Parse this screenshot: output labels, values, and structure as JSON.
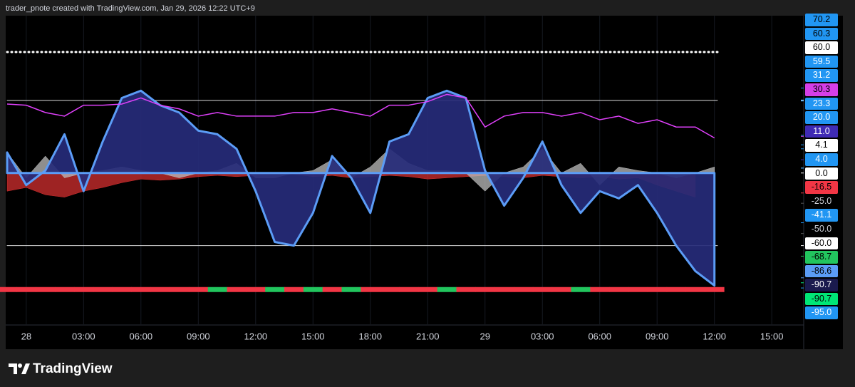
{
  "header": {
    "text": "trader_pnote created with TradingView.com, Jan 29, 2026 12:22 UTC+9"
  },
  "footer": {
    "brand": "TradingView"
  },
  "chart_data": {
    "type": "line",
    "categories": [
      null,
      "28",
      null,
      null,
      "03:00",
      null,
      null,
      "06:00",
      null,
      null,
      "09:00",
      null,
      null,
      "12:00",
      null,
      null,
      "15:00",
      null,
      null,
      "18:00",
      null,
      null,
      "21:00",
      null,
      null,
      "29",
      null,
      null,
      "03:00",
      null,
      null,
      "06:00",
      null,
      null,
      "09:00",
      null,
      null,
      "12:00",
      null,
      null,
      "15:00"
    ],
    "ylim": [
      -125,
      130
    ],
    "grid": true,
    "series": [
      {
        "kind": "area",
        "color": "#d32f2f",
        "values": [
          -15,
          -12,
          -18,
          -20,
          -15,
          -12,
          -8,
          -5,
          -6,
          -5,
          -3,
          -2,
          -3,
          -2,
          -1,
          -1,
          -3,
          -2,
          -4,
          -3,
          -2,
          -3,
          -5,
          -4,
          -3,
          -2,
          -3,
          -4,
          -2,
          -3,
          -4,
          -3,
          -5,
          -4,
          -10,
          -15,
          -20,
          null,
          null,
          null,
          null
        ]
      },
      {
        "kind": "area",
        "color": "#bdbdbd",
        "values": [
          17,
          -4,
          14,
          -4,
          0,
          2,
          5,
          2,
          0,
          -4,
          0,
          2,
          8,
          -4,
          -4,
          0,
          2,
          11,
          -4,
          5,
          20,
          8,
          2,
          2,
          0,
          -15,
          0,
          5,
          20,
          0,
          8,
          -10,
          5,
          2,
          0,
          -4,
          0,
          5,
          null,
          null,
          null
        ]
      },
      {
        "kind": "area",
        "color": "#5b9cf6",
        "values": [
          17,
          -10,
          2,
          32,
          -15,
          26,
          62,
          68,
          56,
          50,
          35,
          32,
          20,
          -15,
          -57,
          -60,
          -33,
          14,
          -4,
          -33,
          26,
          32,
          62,
          68,
          62,
          2,
          -27,
          -4,
          26,
          -10,
          -33,
          -15,
          -21,
          -10,
          -33,
          -60,
          -81,
          -93,
          null,
          null,
          null
        ]
      },
      {
        "kind": "line",
        "color": "#e040fb",
        "values": [
          57,
          56,
          50,
          47,
          56,
          56,
          57,
          62,
          56,
          53,
          47,
          50,
          47,
          47,
          47,
          50,
          50,
          53,
          50,
          47,
          56,
          56,
          59,
          65,
          62,
          38,
          47,
          50,
          50,
          47,
          50,
          44,
          47,
          41,
          44,
          38,
          38,
          29,
          null,
          null,
          null
        ]
      }
    ],
    "hlines": [
      {
        "value": 100,
        "style": "dotted"
      },
      {
        "value": 60,
        "style": "solid"
      },
      {
        "value": -60,
        "style": "solid"
      }
    ],
    "strip": {
      "value": -96,
      "colors": [
        "#f23645",
        "#f23645",
        "#f23645",
        "#f23645",
        "#f23645",
        "#f23645",
        "#f23645",
        "#f23645",
        "#f23645",
        "#f23645",
        "#f23645",
        "#22c55e",
        "#f23645",
        "#f23645",
        "#22c55e",
        "#f23645",
        "#22c55e",
        "#f23645",
        "#22c55e",
        "#f23645",
        "#f23645",
        "#f23645",
        "#f23645",
        "#22c55e",
        "#f23645",
        "#f23645",
        "#f23645",
        "#f23645",
        "#f23645",
        "#f23645",
        "#22c55e",
        "#f23645",
        "#f23645",
        "#f23645",
        "#f23645",
        "#f23645",
        "#f23645",
        "#f23645",
        null,
        null,
        null
      ]
    },
    "price_labels": [
      {
        "value": 70.2,
        "label": "70.2",
        "bg": "#2196f3",
        "fg": "#000000"
      },
      {
        "value": 60.3,
        "label": "60.3",
        "bg": "#2196f3",
        "fg": "#000000"
      },
      {
        "value": 60,
        "label": "60.0",
        "bg": "#ffffff",
        "fg": "#000000"
      },
      {
        "value": 59.5,
        "label": "59.5",
        "bg": "#2196f3",
        "fg": "#ffffff"
      },
      {
        "value": 31.2,
        "label": "31.2",
        "bg": "#2196f3",
        "fg": "#ffffff"
      },
      {
        "value": 30.3,
        "label": "30.3",
        "bg": "#d63ee8",
        "fg": "#000000"
      },
      {
        "value": 23.3,
        "label": "23.3",
        "bg": "#2196f3",
        "fg": "#ffffff"
      },
      {
        "value": 20,
        "label": "20.0",
        "bg": "#2196f3",
        "fg": "#ffffff"
      },
      {
        "value": 11,
        "label": "11.0",
        "bg": "#3f2bb5",
        "fg": "#ffffff"
      },
      {
        "value": 4.1,
        "label": "4.1",
        "bg": "#ffffff",
        "fg": "#000000"
      },
      {
        "value": 4,
        "label": "4.0",
        "bg": "#2196f3",
        "fg": "#ffffff"
      },
      {
        "value": 0,
        "label": "0.0",
        "bg": "#ffffff",
        "fg": "#000000"
      },
      {
        "value": -16.5,
        "label": "-16.5",
        "bg": "#f23645",
        "fg": "#000000"
      },
      {
        "value": -25,
        "label": "-25.0",
        "bg": "#000000",
        "fg": "#d1d4dc"
      },
      {
        "value": -41.1,
        "label": "-41.1",
        "bg": "#2196f3",
        "fg": "#ffffff"
      },
      {
        "value": -50,
        "label": "-50.0",
        "bg": "#000000",
        "fg": "#d1d4dc"
      },
      {
        "value": -60,
        "label": "-60.0",
        "bg": "#ffffff",
        "fg": "#000000"
      },
      {
        "value": -68.7,
        "label": "-68.7",
        "bg": "#22c55e",
        "fg": "#000000"
      },
      {
        "value": -86.6,
        "label": "-86.6",
        "bg": "#5b9cf6",
        "fg": "#000000"
      },
      {
        "value": -90.7,
        "label": "-90.7",
        "bg": "#1a1a4e",
        "fg": "#ffffff"
      },
      {
        "value": -90.7,
        "label": "-90.7",
        "bg": "#00e676",
        "fg": "#000000"
      },
      {
        "value": -95,
        "label": "-95.0",
        "bg": "#2196f3",
        "fg": "#ffffff"
      }
    ]
  }
}
